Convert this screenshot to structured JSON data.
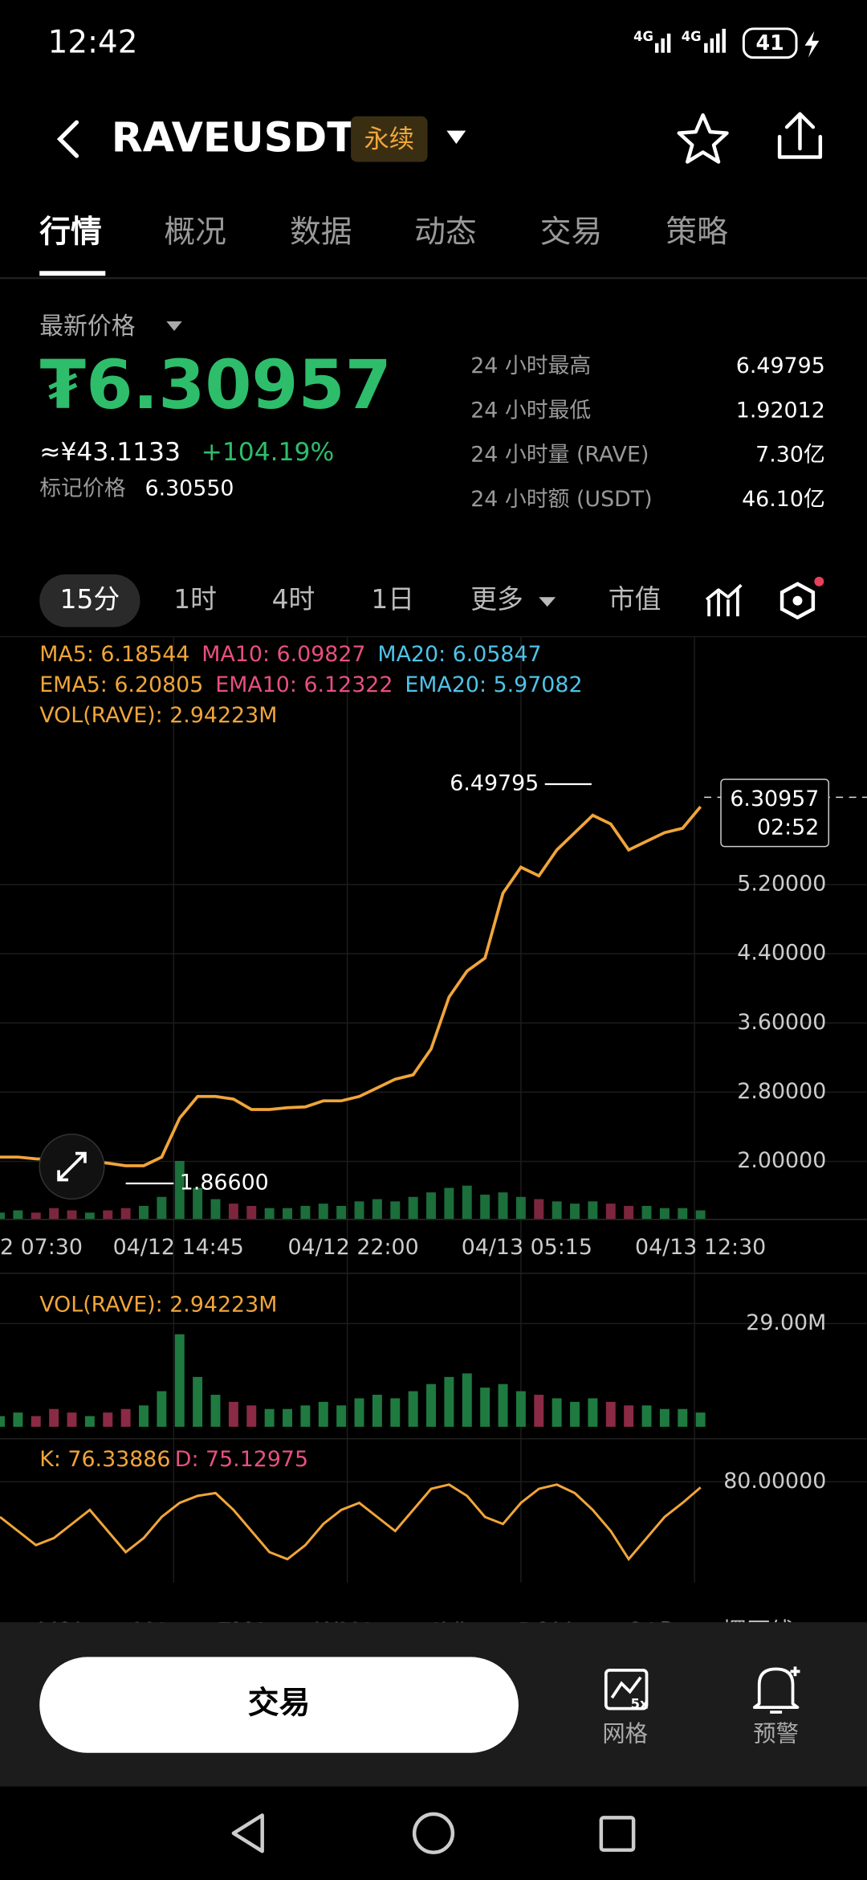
{
  "status": {
    "time": "12:42",
    "signals": [
      "4G",
      "4G"
    ],
    "battery": "41"
  },
  "header": {
    "symbol": "RAVEUSDT",
    "tag": "永续"
  },
  "tabs": [
    "行情",
    "概况",
    "数据",
    "动态",
    "交易",
    "策略"
  ],
  "price": {
    "label": "最新价格",
    "last": "₮6.30957",
    "cny": "≈¥43.1133",
    "change": "+104.19%",
    "mark_label": "标记价格",
    "mark": "6.30550"
  },
  "stats": [
    {
      "label": "24 小时最高",
      "value": "6.49795"
    },
    {
      "label": "24 小时最低",
      "value": "1.92012"
    },
    {
      "label": "24 小时量 (RAVE)",
      "value": "7.30亿"
    },
    {
      "label": "24 小时额 (USDT)",
      "value": "46.10亿"
    }
  ],
  "intervals": [
    "15分",
    "1时",
    "4时",
    "1日",
    "更多",
    "市值"
  ],
  "indicators": [
    [
      {
        "text": "MA5: 6.18544",
        "color": "#f0a53a"
      },
      {
        "text": "MA10: 6.09827",
        "color": "#e8507e"
      },
      {
        "text": "MA20: 6.05847",
        "color": "#4fc3e8"
      }
    ],
    [
      {
        "text": "EMA5: 6.20805",
        "color": "#f0a53a"
      },
      {
        "text": "EMA10: 6.12322",
        "color": "#e8507e"
      },
      {
        "text": "EMA20: 5.97082",
        "color": "#4fc3e8"
      }
    ],
    [
      {
        "text": "VOL(RAVE): 2.94223M",
        "color": "#f0a53a"
      }
    ]
  ],
  "chart": {
    "ylim": [
      1.33,
      6.97
    ],
    "yticks": [
      {
        "value": 2.0,
        "label": "2.00000"
      },
      {
        "value": 2.8,
        "label": "2.80000"
      },
      {
        "value": 3.6,
        "label": "3.60000"
      },
      {
        "value": 4.4,
        "label": "4.40000"
      },
      {
        "value": 5.2,
        "label": "5.20000"
      }
    ],
    "x_labels": [
      "2 07:30",
      "04/12 14:45",
      "04/12 22:00",
      "04/13 05:15",
      "04/13 12:30"
    ],
    "close": [
      2.05,
      2.05,
      2.03,
      2.02,
      2.0,
      2.0,
      1.98,
      1.95,
      1.95,
      2.05,
      2.5,
      2.75,
      2.75,
      2.72,
      2.6,
      2.6,
      2.62,
      2.63,
      2.7,
      2.7,
      2.75,
      2.85,
      2.95,
      3.0,
      3.3,
      3.9,
      4.2,
      4.35,
      5.1,
      5.4,
      5.3,
      5.6,
      5.8,
      6.0,
      5.9,
      5.6,
      5.7,
      5.8,
      5.85,
      6.1
    ],
    "color": "#f0a53a",
    "high_label": "6.49795",
    "low_label": "1.86600",
    "current": "6.30957",
    "countdown": "02:52"
  },
  "volume": {
    "label": "VOL(RAVE): 2.94223M",
    "ylim": [
      0,
      32
    ],
    "yticks": [
      {
        "value": 29,
        "label": "29.00M"
      }
    ],
    "values": [
      3,
      4,
      3,
      5,
      4,
      3,
      4,
      5,
      6,
      10,
      26,
      14,
      9,
      7,
      6,
      5,
      5,
      6,
      7,
      6,
      8,
      9,
      8,
      10,
      12,
      14,
      15,
      11,
      12,
      10,
      9,
      8,
      7,
      8,
      7,
      6,
      6,
      5,
      5,
      4
    ]
  },
  "kd": {
    "k_label": "K: 76.33886",
    "d_label": "D: 75.12975",
    "ylim": [
      10,
      85
    ],
    "yticks": [
      {
        "value": 80,
        "label": "80.00000"
      }
    ],
    "k": [
      55,
      45,
      35,
      40,
      50,
      60,
      45,
      30,
      40,
      55,
      65,
      70,
      72,
      60,
      45,
      30,
      25,
      35,
      50,
      60,
      65,
      55,
      45,
      60,
      75,
      78,
      70,
      55,
      50,
      65,
      75,
      78,
      72,
      60,
      45,
      25,
      40,
      55,
      65,
      76
    ],
    "color": "#f0a53a"
  },
  "indicator_tabs": [
    "VOL",
    "MA",
    "EMA",
    "WMA",
    "AVL",
    "BOLL",
    "SAR",
    "摆压线"
  ],
  "bottom": {
    "trade": "交易",
    "grid_badge": "5x",
    "grid": "网格",
    "alert": "预警"
  }
}
